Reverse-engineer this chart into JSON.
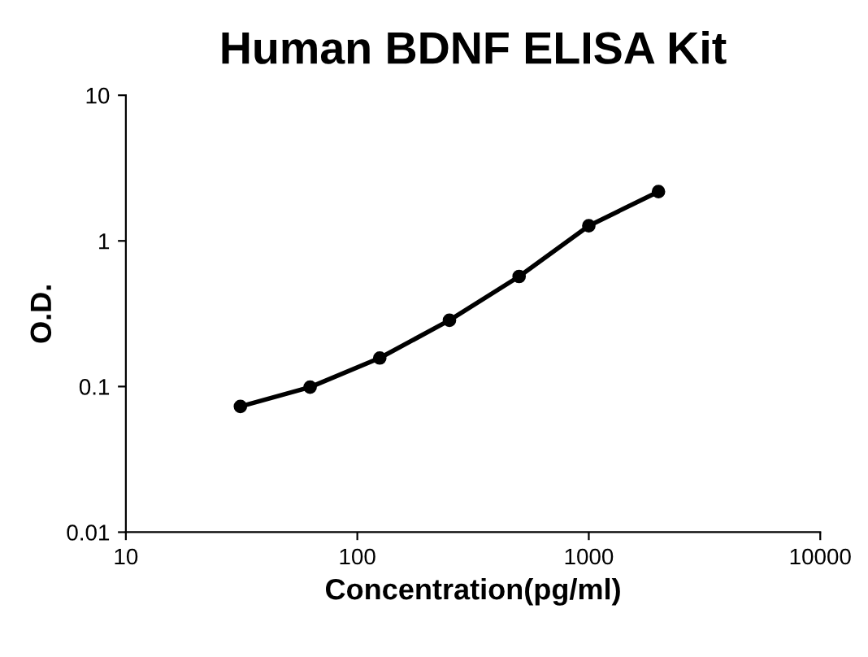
{
  "chart_data": {
    "type": "line",
    "title": "Human BDNF ELISA Kit",
    "xlabel": "Concentration(pg/ml)",
    "ylabel": "O.D.",
    "log": "xy",
    "x": [
      31.25,
      62.5,
      125,
      250,
      500,
      1000,
      2000
    ],
    "series": [
      {
        "color": "#000000",
        "values": [
          0.073,
          0.099,
          0.157,
          0.285,
          0.57,
          1.27,
          2.18
        ]
      }
    ],
    "marker": "circle",
    "line_style": "solid",
    "grid": false,
    "legend": false,
    "xlim": [
      10,
      10000
    ],
    "xticks": [
      10,
      100,
      1000,
      10000
    ],
    "ylim": [
      0.01,
      10
    ],
    "yticks": [
      0.01,
      0.1,
      1,
      10
    ]
  }
}
